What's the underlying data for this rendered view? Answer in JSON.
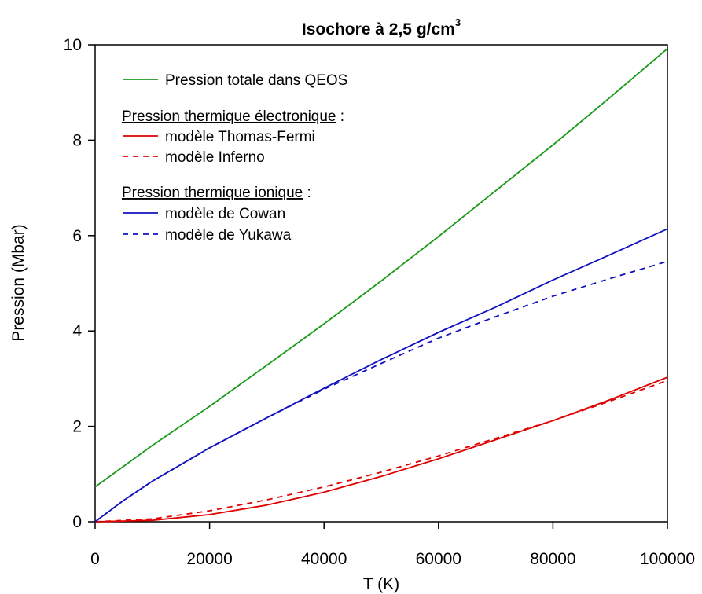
{
  "chart_data": {
    "type": "line",
    "title": "Isochore à 2,5 g/cm",
    "title_superscript": "3",
    "xlabel": "T (K)",
    "ylabel": "Pression (Mbar)",
    "xlim": [
      0,
      100000
    ],
    "ylim": [
      0,
      10
    ],
    "xticks": [
      {
        "value": 0,
        "label": "0"
      },
      {
        "value": 20000,
        "label": "20000"
      },
      {
        "value": 40000,
        "label": "40000"
      },
      {
        "value": 60000,
        "label": "60000"
      },
      {
        "value": 80000,
        "label": "80000"
      },
      {
        "value": 100000,
        "label": "100000"
      }
    ],
    "yticks": [
      {
        "value": 0,
        "label": "0"
      },
      {
        "value": 2,
        "label": "2"
      },
      {
        "value": 4,
        "label": "4"
      },
      {
        "value": 6,
        "label": "6"
      },
      {
        "value": 8,
        "label": "8"
      },
      {
        "value": 10,
        "label": "10"
      }
    ],
    "grid": false,
    "legend_position": "top-left",
    "legend": {
      "group1_heading": "Pression thermique électronique",
      "group2_heading": "Pression thermique ionique",
      "heading_suffix": " :"
    },
    "series": [
      {
        "name": "Pression totale dans QEOS",
        "color": "#1a9a1a",
        "dash": "solid",
        "x": [
          0,
          10000,
          20000,
          30000,
          40000,
          50000,
          60000,
          70000,
          80000,
          90000,
          100000
        ],
        "y": [
          0.73,
          1.6,
          2.42,
          3.28,
          4.15,
          5.05,
          5.98,
          6.94,
          7.9,
          8.9,
          9.92
        ]
      },
      {
        "name": "modèle Thomas-Fermi",
        "color": "#e00000",
        "dash": "solid",
        "x": [
          0,
          10000,
          20000,
          30000,
          40000,
          50000,
          60000,
          70000,
          80000,
          90000,
          100000
        ],
        "y": [
          0.0,
          0.03,
          0.15,
          0.35,
          0.62,
          0.95,
          1.32,
          1.72,
          2.12,
          2.56,
          3.03
        ]
      },
      {
        "name": "modèle Inferno",
        "color": "#e00000",
        "dash": "dashed",
        "x": [
          0,
          10000,
          20000,
          30000,
          40000,
          50000,
          60000,
          70000,
          80000,
          90000,
          100000
        ],
        "y": [
          0.0,
          0.06,
          0.23,
          0.46,
          0.73,
          1.04,
          1.38,
          1.75,
          2.12,
          2.53,
          2.96
        ]
      },
      {
        "name": "modèle de Cowan",
        "color": "#1010c0",
        "dash": "solid",
        "x": [
          0,
          5000,
          10000,
          20000,
          30000,
          40000,
          50000,
          60000,
          70000,
          80000,
          90000,
          100000
        ],
        "y": [
          0.0,
          0.45,
          0.85,
          1.55,
          2.18,
          2.8,
          3.4,
          3.97,
          4.5,
          5.07,
          5.6,
          6.14
        ]
      },
      {
        "name": "modèle de Yukawa",
        "color": "#1010c0",
        "dash": "dashed",
        "x": [
          0,
          5000,
          10000,
          20000,
          30000,
          40000,
          50000,
          60000,
          70000,
          80000,
          90000,
          100000
        ],
        "y": [
          0.0,
          0.45,
          0.85,
          1.55,
          2.18,
          2.78,
          3.32,
          3.85,
          4.3,
          4.73,
          5.1,
          5.46
        ]
      }
    ]
  }
}
